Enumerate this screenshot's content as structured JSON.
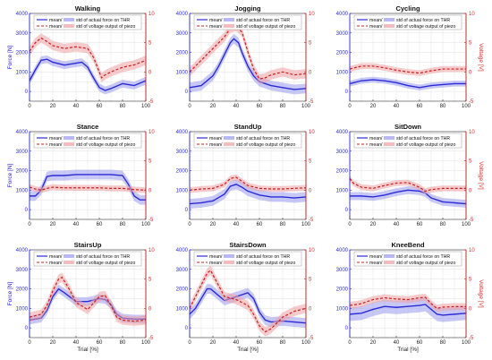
{
  "colors": {
    "force": "#2b2bd6",
    "force_band": "#9a9af0",
    "voltage": "#c62020",
    "voltage_band": "#f0a0a0"
  },
  "chart_data": [
    {
      "type": "line",
      "title": "Walking",
      "xlabel": "",
      "ylabel_left": "Force [N]",
      "ylabel_right": "",
      "xlim": [
        0,
        100
      ],
      "ylim_left": [
        -500,
        4000
      ],
      "ylim_right": [
        -5,
        10
      ],
      "grid": true,
      "legend": {
        "position": "top",
        "entries": [
          "mean/",
          "std of actual force on THR",
          "mean/",
          "std of voltage output of piezo"
        ]
      },
      "series": [
        {
          "name": "mean/ std of actual force on THR",
          "axis": "left",
          "x": [
            0,
            5,
            10,
            15,
            20,
            30,
            40,
            45,
            50,
            55,
            60,
            65,
            70,
            80,
            90,
            100
          ],
          "y": [
            550,
            1100,
            1600,
            1650,
            1500,
            1350,
            1450,
            1500,
            1250,
            700,
            200,
            50,
            150,
            400,
            300,
            550
          ],
          "std": 200
        },
        {
          "name": "mean/ std of voltage output of piezo",
          "axis": "right",
          "x": [
            0,
            5,
            10,
            15,
            20,
            30,
            40,
            50,
            55,
            60,
            62,
            65,
            70,
            80,
            90,
            100
          ],
          "y": [
            3.5,
            5,
            5.8,
            5.2,
            4.5,
            4,
            4.3,
            4,
            2.5,
            0,
            -1,
            -0.5,
            0,
            0.8,
            1.2,
            2
          ],
          "std": 0.8
        }
      ]
    },
    {
      "type": "line",
      "title": "Jogging",
      "xlabel": "",
      "ylabel_left": "",
      "ylabel_right": "",
      "xlim": [
        0,
        100
      ],
      "ylim_left": [
        -500,
        4000
      ],
      "ylim_right": [
        -5,
        10
      ],
      "grid": true,
      "legend": {
        "position": "top",
        "entries": [
          "mean/",
          "std of actual force on THR",
          "mean/",
          "std of voltage output of piezo"
        ]
      },
      "series": [
        {
          "name": "mean/ std of actual force on THR",
          "axis": "left",
          "x": [
            0,
            10,
            20,
            25,
            30,
            35,
            38,
            42,
            45,
            50,
            55,
            60,
            70,
            80,
            90,
            100
          ],
          "y": [
            200,
            300,
            800,
            1300,
            1900,
            2500,
            2700,
            2500,
            2000,
            1300,
            800,
            500,
            300,
            200,
            100,
            150
          ],
          "std": 250
        },
        {
          "name": "mean/ std of voltage output of piezo",
          "axis": "right",
          "x": [
            0,
            10,
            20,
            30,
            35,
            40,
            45,
            50,
            55,
            60,
            65,
            70,
            80,
            90,
            100
          ],
          "y": [
            0,
            2,
            4,
            6,
            7.5,
            7.8,
            6.8,
            3.5,
            0.5,
            -1.2,
            -1,
            -0.5,
            0,
            -0.5,
            -0.3
          ],
          "std": 0.8
        }
      ]
    },
    {
      "type": "line",
      "title": "Cycling",
      "xlabel": "",
      "ylabel_left": "",
      "ylabel_right": "Voltage [V]",
      "xlim": [
        0,
        100
      ],
      "ylim_left": [
        -500,
        4000
      ],
      "ylim_right": [
        -5,
        10
      ],
      "grid": true,
      "legend": {
        "position": "top",
        "entries": [
          "mean/",
          "std of actual force on THR",
          "mean/",
          "std of voltage output of piezo"
        ]
      },
      "series": [
        {
          "name": "mean/ std of actual force on THR",
          "axis": "left",
          "x": [
            0,
            10,
            20,
            30,
            40,
            50,
            60,
            70,
            80,
            90,
            100
          ],
          "y": [
            400,
            550,
            600,
            550,
            450,
            300,
            200,
            300,
            350,
            400,
            400
          ],
          "std": 150
        },
        {
          "name": "mean/ std of voltage output of piezo",
          "axis": "right",
          "x": [
            0,
            10,
            20,
            30,
            40,
            50,
            60,
            70,
            80,
            90,
            100
          ],
          "y": [
            0.5,
            1,
            1,
            0.7,
            0.3,
            0,
            -0.2,
            0.2,
            0.5,
            0.5,
            0.5
          ],
          "std": 0.5
        }
      ]
    },
    {
      "type": "line",
      "title": "Stance",
      "xlabel": "",
      "ylabel_left": "Force [N]",
      "ylabel_right": "",
      "xlim": [
        0,
        100
      ],
      "ylim_left": [
        -500,
        4000
      ],
      "ylim_right": [
        -5,
        10
      ],
      "grid": true,
      "legend": {
        "position": "top",
        "entries": [
          "mean/",
          "std of actual force on THR",
          "mean/",
          "std of voltage output of piezo"
        ]
      },
      "series": [
        {
          "name": "mean/ std of actual force on THR",
          "axis": "left",
          "x": [
            0,
            5,
            10,
            15,
            20,
            30,
            40,
            50,
            60,
            70,
            80,
            85,
            90,
            95,
            100
          ],
          "y": [
            700,
            700,
            1000,
            1700,
            1750,
            1750,
            1800,
            1800,
            1800,
            1800,
            1750,
            1300,
            700,
            500,
            500
          ],
          "std": 250
        },
        {
          "name": "mean/ std of voltage output of piezo",
          "axis": "right",
          "x": [
            0,
            5,
            10,
            15,
            20,
            30,
            40,
            50,
            60,
            70,
            80,
            90,
            100
          ],
          "y": [
            0.5,
            0.2,
            0,
            0.3,
            0.5,
            0.4,
            0.4,
            0.4,
            0.4,
            0.3,
            0.3,
            0.1,
            0
          ],
          "std": 0.5
        }
      ]
    },
    {
      "type": "line",
      "title": "StandUp",
      "xlabel": "",
      "ylabel_left": "",
      "ylabel_right": "",
      "xlim": [
        0,
        100
      ],
      "ylim_left": [
        -500,
        4000
      ],
      "ylim_right": [
        -5,
        10
      ],
      "grid": true,
      "legend": {
        "position": "top",
        "entries": [
          "mean/",
          "std of actual force on THR",
          "mean/",
          "std of voltage output of piezo"
        ]
      },
      "series": [
        {
          "name": "mean/ std of actual force on THR",
          "axis": "left",
          "x": [
            0,
            10,
            20,
            30,
            35,
            40,
            45,
            50,
            60,
            70,
            80,
            90,
            100
          ],
          "y": [
            300,
            350,
            450,
            800,
            1200,
            1300,
            1150,
            950,
            750,
            650,
            650,
            600,
            650
          ],
          "std": 250
        },
        {
          "name": "mean/ std of voltage output of piezo",
          "axis": "right",
          "x": [
            0,
            10,
            20,
            30,
            35,
            40,
            45,
            50,
            60,
            70,
            80,
            90,
            100
          ],
          "y": [
            0,
            0.2,
            0.3,
            1,
            2,
            2.2,
            1.5,
            0.8,
            0.3,
            0.2,
            0.2,
            0.3,
            0.4
          ],
          "std": 0.5
        }
      ]
    },
    {
      "type": "line",
      "title": "SitDown",
      "xlabel": "",
      "ylabel_left": "",
      "ylabel_right": "Voltage [V]",
      "xlim": [
        0,
        100
      ],
      "ylim_left": [
        -500,
        4000
      ],
      "ylim_right": [
        -5,
        10
      ],
      "grid": true,
      "legend": {
        "position": "top",
        "entries": [
          "mean/",
          "std of actual force on THR",
          "mean/",
          "std of voltage output of piezo"
        ]
      },
      "series": [
        {
          "name": "mean/ std of actual force on THR",
          "axis": "left",
          "x": [
            0,
            10,
            20,
            30,
            40,
            50,
            60,
            65,
            70,
            80,
            90,
            100
          ],
          "y": [
            700,
            700,
            650,
            750,
            900,
            1000,
            950,
            850,
            600,
            400,
            350,
            300
          ],
          "std": 200
        },
        {
          "name": "mean/ std of voltage output of piezo",
          "axis": "right",
          "x": [
            0,
            3,
            10,
            20,
            30,
            40,
            50,
            60,
            65,
            70,
            80,
            90,
            100
          ],
          "y": [
            2,
            1.2,
            0.5,
            0.3,
            0.8,
            1.2,
            1.3,
            0.5,
            -0.2,
            0.1,
            0.3,
            0.3,
            0.3
          ],
          "std": 0.5
        }
      ]
    },
    {
      "type": "line",
      "title": "StairsUp",
      "xlabel": "Trial [%]",
      "ylabel_left": "Force [N]",
      "ylabel_right": "",
      "xlim": [
        0,
        100
      ],
      "ylim_left": [
        -500,
        4000
      ],
      "ylim_right": [
        -5,
        10
      ],
      "grid": true,
      "legend": {
        "position": "top",
        "entries": [
          "mean/",
          "std of actual force on THR",
          "mean/",
          "std of voltage output of piezo"
        ]
      },
      "series": [
        {
          "name": "mean/ std of actual force on THR",
          "axis": "left",
          "x": [
            0,
            10,
            15,
            20,
            25,
            30,
            40,
            50,
            60,
            65,
            70,
            75,
            80,
            90,
            100
          ],
          "y": [
            400,
            500,
            900,
            1600,
            2000,
            1800,
            1350,
            1350,
            1500,
            1450,
            1200,
            700,
            500,
            450,
            450
          ],
          "std": 220
        },
        {
          "name": "mean/ std of voltage output of piezo",
          "axis": "right",
          "x": [
            0,
            10,
            15,
            20,
            25,
            28,
            35,
            40,
            50,
            60,
            65,
            70,
            75,
            80,
            90,
            100
          ],
          "y": [
            -1.5,
            -1,
            0.5,
            3,
            5,
            5.3,
            3,
            1,
            -0.2,
            2,
            2.2,
            0.5,
            -1.5,
            -2,
            -2.2,
            -2
          ],
          "std": 0.8
        }
      ]
    },
    {
      "type": "line",
      "title": "StairsDown",
      "xlabel": "Trial [%]",
      "ylabel_left": "",
      "ylabel_right": "",
      "xlim": [
        0,
        100
      ],
      "ylim_left": [
        -500,
        4000
      ],
      "ylim_right": [
        -5,
        10
      ],
      "grid": true,
      "legend": {
        "position": "top",
        "entries": [
          "mean/",
          "std of actual force on THR",
          "mean/",
          "std of voltage output of piezo"
        ]
      },
      "series": [
        {
          "name": "mean/ std of actual force on THR",
          "axis": "left",
          "x": [
            0,
            5,
            10,
            15,
            18,
            22,
            30,
            40,
            50,
            55,
            60,
            65,
            70,
            80,
            90,
            100
          ],
          "y": [
            700,
            1000,
            1500,
            2000,
            2000,
            1800,
            1400,
            1600,
            1800,
            1500,
            800,
            400,
            300,
            350,
            300,
            250
          ],
          "std": 250
        },
        {
          "name": "mean/ std of voltage output of piezo",
          "axis": "right",
          "x": [
            0,
            5,
            10,
            15,
            18,
            22,
            30,
            40,
            50,
            55,
            60,
            65,
            70,
            80,
            90,
            100
          ],
          "y": [
            0,
            2,
            4,
            6,
            6.5,
            5,
            2,
            1.5,
            0.5,
            -1,
            -3,
            -4,
            -3.5,
            -1.5,
            -0.5,
            0
          ],
          "std": 0.8
        }
      ]
    },
    {
      "type": "line",
      "title": "KneeBend",
      "xlabel": "Trial [%]",
      "ylabel_left": "",
      "ylabel_right": "Voltage [V]",
      "xlim": [
        0,
        100
      ],
      "ylim_left": [
        -500,
        4000
      ],
      "ylim_right": [
        -5,
        10
      ],
      "grid": true,
      "legend": {
        "position": "top",
        "entries": [
          "mean/",
          "std of actual force on THR",
          "mean/",
          "std of voltage output of piezo"
        ]
      },
      "series": [
        {
          "name": "mean/ std of actual force on THR",
          "axis": "left",
          "x": [
            0,
            10,
            20,
            30,
            40,
            50,
            60,
            65,
            70,
            75,
            80,
            90,
            100
          ],
          "y": [
            700,
            750,
            950,
            1100,
            1050,
            1100,
            1150,
            1200,
            950,
            700,
            650,
            700,
            750
          ],
          "std": 350
        },
        {
          "name": "mean/ std of voltage output of piezo",
          "axis": "right",
          "x": [
            0,
            10,
            20,
            30,
            40,
            50,
            60,
            65,
            70,
            75,
            80,
            90,
            100
          ],
          "y": [
            0.5,
            0.8,
            1.5,
            1.8,
            1.6,
            1.5,
            1.8,
            1.9,
            0.8,
            0,
            0.2,
            0.3,
            0.3
          ],
          "std": 0.6
        }
      ]
    }
  ]
}
